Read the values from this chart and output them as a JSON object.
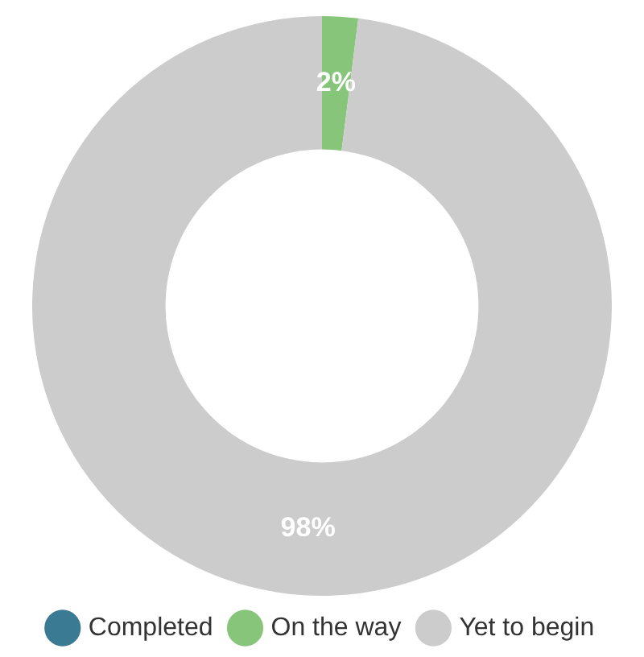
{
  "chart_data": {
    "type": "donut",
    "categories": [
      "Completed",
      "On the way",
      "Yet to begin"
    ],
    "values": [
      0,
      2,
      98
    ],
    "colors": [
      "#3b7a93",
      "#86c57a",
      "#cccccc"
    ],
    "value_labels": [
      null,
      "2%",
      "98%"
    ],
    "legend": "bottom"
  }
}
